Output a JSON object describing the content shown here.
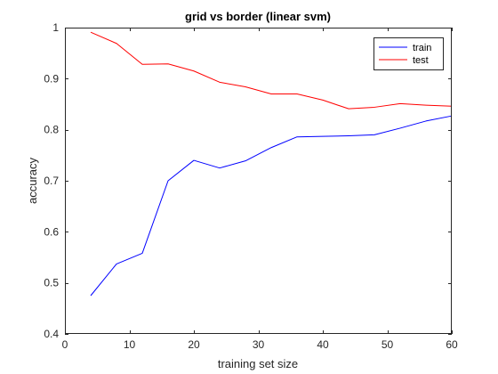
{
  "chart_data": {
    "type": "line",
    "title": "grid vs border (linear svm)",
    "xlabel": "training set size",
    "ylabel": "accuracy",
    "xlim": [
      0,
      60
    ],
    "ylim": [
      0.4,
      1
    ],
    "xticks": [
      0,
      10,
      20,
      30,
      40,
      50,
      60
    ],
    "yticks": [
      0.4,
      0.5,
      0.6,
      0.7,
      0.8,
      0.9,
      1
    ],
    "xtick_labels": [
      "0",
      "10",
      "20",
      "30",
      "40",
      "50",
      "60"
    ],
    "ytick_labels": [
      "0.4",
      "0.5",
      "0.6",
      "0.7",
      "0.8",
      "0.9",
      "1"
    ],
    "grid": false,
    "legend_position": "top-right",
    "x": [
      4,
      8,
      12,
      16,
      20,
      24,
      28,
      32,
      36,
      40,
      44,
      48,
      52,
      56,
      60
    ],
    "series": [
      {
        "name": "train",
        "color": "#0000ff",
        "values": [
          0.475,
          0.537,
          0.558,
          0.7,
          0.74,
          0.725,
          0.739,
          0.765,
          0.786,
          0.787,
          0.788,
          0.79,
          0.803,
          0.817,
          0.827
        ]
      },
      {
        "name": "test",
        "color": "#ff0000",
        "values": [
          0.991,
          0.969,
          0.928,
          0.929,
          0.915,
          0.893,
          0.884,
          0.87,
          0.87,
          0.858,
          0.841,
          0.844,
          0.851,
          0.848,
          0.846
        ]
      }
    ]
  }
}
